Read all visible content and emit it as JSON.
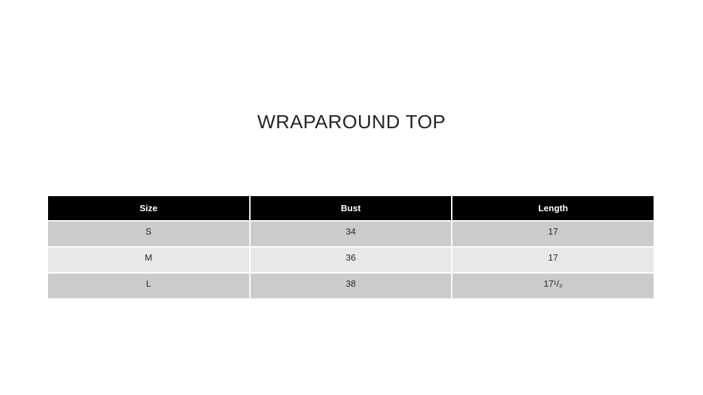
{
  "title": "WRAPAROUND TOP",
  "chart_data": {
    "type": "table",
    "title": "WRAPAROUND TOP",
    "columns": [
      "Size",
      "Bust",
      "Length"
    ],
    "rows": [
      [
        "S",
        "34",
        "17"
      ],
      [
        "M",
        "36",
        "17"
      ],
      [
        "L",
        "38",
        "17¹/₂"
      ]
    ]
  },
  "colors": {
    "page_bg": "#ffffff",
    "header_bg": "#000000",
    "header_text": "#ffffff",
    "band_dark": "#cbcbcb",
    "band_light": "#e8e8e8",
    "text": "#262626"
  }
}
